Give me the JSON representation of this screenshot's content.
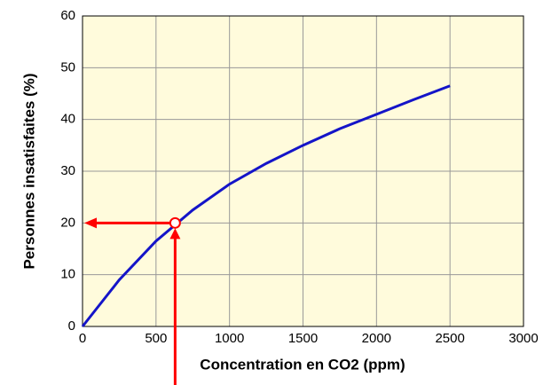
{
  "chart_data": {
    "type": "line",
    "xlabel": "Concentration en CO2 (ppm)",
    "ylabel": "Personnes insatisfaites (%)",
    "x": [
      0,
      250,
      500,
      750,
      1000,
      1250,
      1500,
      1750,
      2000,
      2250,
      2500
    ],
    "series": [
      {
        "color": "#1414c8",
        "values": [
          0,
          9,
          16.5,
          22.5,
          27.5,
          31.5,
          35,
          38.2,
          41,
          43.8,
          46.5
        ]
      }
    ],
    "marker": {
      "x": 630,
      "y": 20,
      "color": "#ff0000"
    },
    "xlim": [
      0,
      3000
    ],
    "xticks": [
      0,
      500,
      1000,
      1500,
      2000,
      2500,
      3000
    ],
    "ylim": [
      0,
      60
    ],
    "yticks": [
      0,
      10,
      20,
      30,
      40,
      50,
      60
    ],
    "grid": true
  }
}
